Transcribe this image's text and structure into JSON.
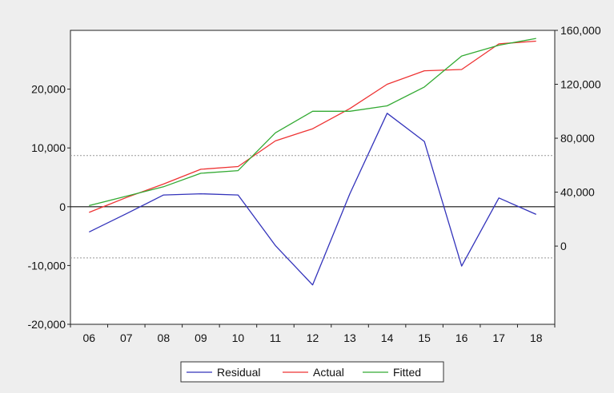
{
  "chart_data": {
    "type": "line",
    "categories": [
      "06",
      "07",
      "08",
      "09",
      "10",
      "11",
      "12",
      "13",
      "14",
      "15",
      "16",
      "17",
      "18"
    ],
    "left_axis": {
      "ylim": [
        -20000,
        30000
      ],
      "ticks": [
        -20000,
        -10000,
        0,
        10000,
        20000
      ],
      "tick_labels": [
        "-20,000",
        "-10,000",
        "0",
        "10,000",
        "20,000"
      ],
      "reference_lines": [
        8700,
        0,
        -8700
      ]
    },
    "right_axis": {
      "ylim": [
        -58000,
        160000
      ],
      "ticks": [
        0,
        40000,
        80000,
        120000,
        160000
      ],
      "tick_labels": [
        "0",
        "40,000",
        "80,000",
        "120,000",
        "160,000"
      ]
    },
    "series": [
      {
        "name": "Residual",
        "axis": "left",
        "color": "#3333bb",
        "values": [
          -4300,
          -1200,
          2000,
          2200,
          2000,
          -6600,
          -13300,
          2200,
          15900,
          11100,
          -10100,
          1500,
          -1300
        ]
      },
      {
        "name": "Actual",
        "axis": "right",
        "color": "#ee3333",
        "values": [
          25000,
          36000,
          46000,
          57000,
          59000,
          78000,
          87000,
          102000,
          120000,
          130000,
          131000,
          150000,
          152000
        ]
      },
      {
        "name": "Fitted",
        "axis": "right",
        "color": "#33aa33",
        "values": [
          30000,
          37000,
          44000,
          54000,
          56000,
          84000,
          100000,
          100000,
          104000,
          118000,
          141000,
          149000,
          154000
        ]
      }
    ],
    "grid": false,
    "legend_position": "bottom-center"
  }
}
